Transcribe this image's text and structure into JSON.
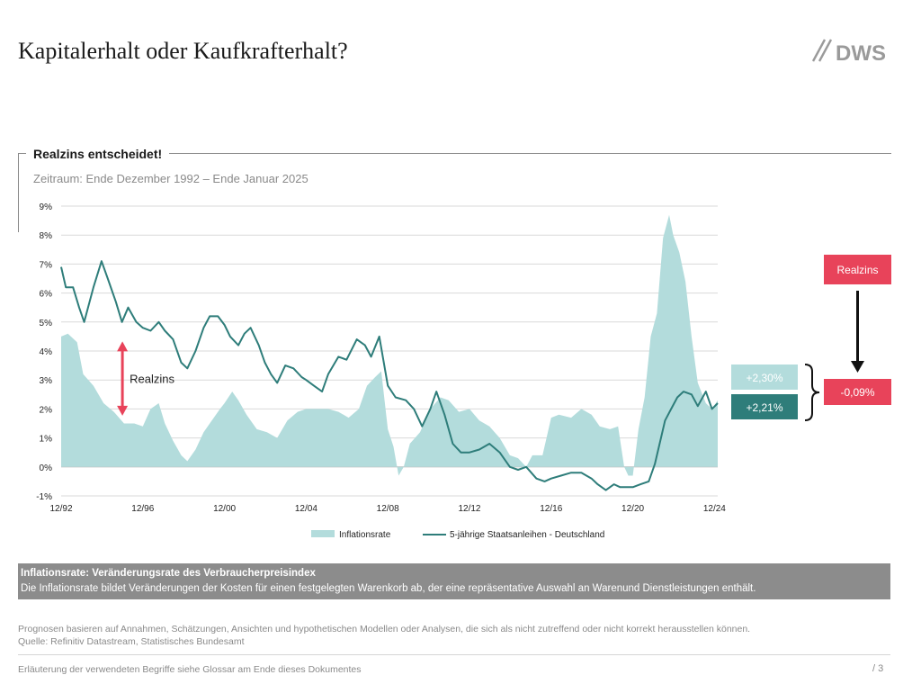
{
  "header": {
    "title": "Kapitalerhalt oder Kaufkrafterhalt?",
    "logo_text": "DWS"
  },
  "section": {
    "title": "Realzins entscheidet!",
    "period": "Zeitraum: Ende Dezember 1992 – Ende Januar 2025"
  },
  "colors": {
    "inflation_fill": "#b3dcdc",
    "bond_line": "#2e7d7a",
    "accent_red": "#e8435a",
    "box_light": "#b3dcdc",
    "box_dark": "#2e7d7a",
    "grid": "#d9d9d9"
  },
  "chart_data": {
    "type": "area",
    "x_unit": "year",
    "xlim": [
      1992.92,
      2025.08
    ],
    "ylim": [
      -1,
      9
    ],
    "y_ticks": [
      -1,
      0,
      1,
      2,
      3,
      4,
      5,
      6,
      7,
      8,
      9
    ],
    "y_tick_labels": [
      "-1%",
      "0%",
      "1%",
      "2%",
      "3%",
      "4%",
      "5%",
      "6%",
      "7%",
      "8%",
      "9%"
    ],
    "x_ticks": [
      1992.92,
      1996.92,
      2000.92,
      2004.92,
      2008.92,
      2012.92,
      2016.92,
      2020.92,
      2024.92
    ],
    "x_tick_labels": [
      "12/92",
      "12/96",
      "12/00",
      "12/04",
      "12/08",
      "12/12",
      "12/16",
      "12/20",
      "12/24"
    ],
    "legend": {
      "position": "bottom"
    },
    "series": [
      {
        "name": "Inflationsrate",
        "kind": "area",
        "points": [
          [
            1992.92,
            4.5
          ],
          [
            1993.25,
            4.6
          ],
          [
            1993.7,
            4.3
          ],
          [
            1994.0,
            3.2
          ],
          [
            1994.5,
            2.8
          ],
          [
            1995.0,
            2.2
          ],
          [
            1995.5,
            1.9
          ],
          [
            1996.0,
            1.5
          ],
          [
            1996.5,
            1.5
          ],
          [
            1996.92,
            1.4
          ],
          [
            1997.3,
            2.0
          ],
          [
            1997.7,
            2.2
          ],
          [
            1998.0,
            1.5
          ],
          [
            1998.4,
            0.9
          ],
          [
            1998.8,
            0.4
          ],
          [
            1999.1,
            0.2
          ],
          [
            1999.5,
            0.6
          ],
          [
            1999.9,
            1.2
          ],
          [
            2000.3,
            1.6
          ],
          [
            2000.7,
            2.0
          ],
          [
            2000.92,
            2.2
          ],
          [
            2001.3,
            2.6
          ],
          [
            2001.6,
            2.3
          ],
          [
            2002.0,
            1.8
          ],
          [
            2002.5,
            1.3
          ],
          [
            2003.0,
            1.2
          ],
          [
            2003.5,
            1.0
          ],
          [
            2004.0,
            1.6
          ],
          [
            2004.5,
            1.9
          ],
          [
            2004.92,
            2.0
          ],
          [
            2005.5,
            2.0
          ],
          [
            2006.0,
            2.0
          ],
          [
            2006.5,
            1.9
          ],
          [
            2007.0,
            1.7
          ],
          [
            2007.5,
            2.0
          ],
          [
            2007.9,
            2.8
          ],
          [
            2008.3,
            3.1
          ],
          [
            2008.6,
            3.3
          ],
          [
            2008.92,
            1.3
          ],
          [
            2009.2,
            0.7
          ],
          [
            2009.45,
            -0.3
          ],
          [
            2009.7,
            0.0
          ],
          [
            2010.0,
            0.8
          ],
          [
            2010.5,
            1.2
          ],
          [
            2011.0,
            2.0
          ],
          [
            2011.5,
            2.4
          ],
          [
            2011.9,
            2.3
          ],
          [
            2012.4,
            1.9
          ],
          [
            2012.92,
            2.0
          ],
          [
            2013.4,
            1.6
          ],
          [
            2013.9,
            1.4
          ],
          [
            2014.4,
            1.0
          ],
          [
            2014.9,
            0.4
          ],
          [
            2015.3,
            0.3
          ],
          [
            2015.7,
            0.0
          ],
          [
            2016.0,
            0.4
          ],
          [
            2016.5,
            0.4
          ],
          [
            2016.92,
            1.7
          ],
          [
            2017.3,
            1.8
          ],
          [
            2017.9,
            1.7
          ],
          [
            2018.4,
            2.0
          ],
          [
            2018.9,
            1.8
          ],
          [
            2019.3,
            1.4
          ],
          [
            2019.8,
            1.3
          ],
          [
            2020.2,
            1.4
          ],
          [
            2020.5,
            0.0
          ],
          [
            2020.7,
            -0.3
          ],
          [
            2020.92,
            -0.3
          ],
          [
            2021.2,
            1.3
          ],
          [
            2021.5,
            2.4
          ],
          [
            2021.8,
            4.5
          ],
          [
            2022.1,
            5.3
          ],
          [
            2022.4,
            7.9
          ],
          [
            2022.7,
            8.7
          ],
          [
            2022.9,
            8.0
          ],
          [
            2023.2,
            7.4
          ],
          [
            2023.5,
            6.4
          ],
          [
            2023.8,
            4.5
          ],
          [
            2024.1,
            2.9
          ],
          [
            2024.5,
            2.2
          ],
          [
            2024.8,
            2.0
          ],
          [
            2025.08,
            2.3
          ]
        ]
      },
      {
        "name": "5-jährige Staatsanleihen - Deutschland",
        "kind": "line",
        "points": [
          [
            1992.92,
            6.9
          ],
          [
            1993.15,
            6.2
          ],
          [
            1993.5,
            6.2
          ],
          [
            1993.8,
            5.5
          ],
          [
            1994.05,
            5.0
          ],
          [
            1994.5,
            6.2
          ],
          [
            1994.9,
            7.1
          ],
          [
            1995.2,
            6.5
          ],
          [
            1995.6,
            5.7
          ],
          [
            1995.9,
            5.0
          ],
          [
            1996.2,
            5.5
          ],
          [
            1996.6,
            5.0
          ],
          [
            1996.92,
            4.8
          ],
          [
            1997.3,
            4.7
          ],
          [
            1997.7,
            5.0
          ],
          [
            1998.0,
            4.7
          ],
          [
            1998.4,
            4.4
          ],
          [
            1998.8,
            3.6
          ],
          [
            1999.1,
            3.4
          ],
          [
            1999.5,
            4.0
          ],
          [
            1999.9,
            4.8
          ],
          [
            2000.2,
            5.2
          ],
          [
            2000.6,
            5.2
          ],
          [
            2000.92,
            4.9
          ],
          [
            2001.2,
            4.5
          ],
          [
            2001.6,
            4.2
          ],
          [
            2001.9,
            4.6
          ],
          [
            2002.2,
            4.8
          ],
          [
            2002.6,
            4.2
          ],
          [
            2002.9,
            3.6
          ],
          [
            2003.2,
            3.2
          ],
          [
            2003.5,
            2.9
          ],
          [
            2003.9,
            3.5
          ],
          [
            2004.3,
            3.4
          ],
          [
            2004.7,
            3.1
          ],
          [
            2004.92,
            3.0
          ],
          [
            2005.3,
            2.8
          ],
          [
            2005.7,
            2.6
          ],
          [
            2006.0,
            3.2
          ],
          [
            2006.5,
            3.8
          ],
          [
            2006.9,
            3.7
          ],
          [
            2007.4,
            4.4
          ],
          [
            2007.8,
            4.2
          ],
          [
            2008.1,
            3.8
          ],
          [
            2008.5,
            4.5
          ],
          [
            2008.92,
            2.8
          ],
          [
            2009.3,
            2.4
          ],
          [
            2009.8,
            2.3
          ],
          [
            2010.2,
            2.0
          ],
          [
            2010.6,
            1.4
          ],
          [
            2011.0,
            2.0
          ],
          [
            2011.3,
            2.6
          ],
          [
            2011.7,
            1.8
          ],
          [
            2012.1,
            0.8
          ],
          [
            2012.5,
            0.5
          ],
          [
            2012.92,
            0.5
          ],
          [
            2013.4,
            0.6
          ],
          [
            2013.9,
            0.8
          ],
          [
            2014.4,
            0.5
          ],
          [
            2014.9,
            0.0
          ],
          [
            2015.3,
            -0.1
          ],
          [
            2015.7,
            0.0
          ],
          [
            2016.2,
            -0.4
          ],
          [
            2016.6,
            -0.5
          ],
          [
            2016.92,
            -0.4
          ],
          [
            2017.4,
            -0.3
          ],
          [
            2017.9,
            -0.2
          ],
          [
            2018.4,
            -0.2
          ],
          [
            2018.9,
            -0.4
          ],
          [
            2019.2,
            -0.6
          ],
          [
            2019.6,
            -0.8
          ],
          [
            2020.0,
            -0.6
          ],
          [
            2020.3,
            -0.7
          ],
          [
            2020.7,
            -0.7
          ],
          [
            2020.92,
            -0.7
          ],
          [
            2021.3,
            -0.6
          ],
          [
            2021.7,
            -0.5
          ],
          [
            2022.0,
            0.1
          ],
          [
            2022.3,
            1.0
          ],
          [
            2022.5,
            1.6
          ],
          [
            2022.8,
            2.0
          ],
          [
            2023.1,
            2.4
          ],
          [
            2023.4,
            2.6
          ],
          [
            2023.8,
            2.5
          ],
          [
            2024.1,
            2.1
          ],
          [
            2024.5,
            2.6
          ],
          [
            2024.8,
            2.0
          ],
          [
            2025.08,
            2.2
          ]
        ]
      }
    ],
    "annotations": {
      "realzins_label": "Realzins",
      "realzins_arrow": {
        "x": 1995.92,
        "from": 1.8,
        "to": 4.3
      },
      "inflation_value": "+2,30%",
      "bond_value": "+2,21%",
      "realzins_box": "Realzins",
      "realzins_value": "-0,09%"
    }
  },
  "info": {
    "heading": "Inflationsrate: Veränderungsrate des Verbraucherpreisindex",
    "text": "Die Inflationsrate bildet Veränderungen der Kosten für einen festgelegten Warenkorb ab, der eine repräsentative Auswahl an Warenund Dienstleistungen enthält."
  },
  "disclaimer": {
    "line1": "Prognosen basieren auf Annahmen, Schätzungen, Ansichten und hypothetischen Modellen oder Analysen, die sich als nicht zutreffend oder nicht korrekt herausstellen können.",
    "line2": "Quelle: Refinitiv Datastream, Statistisches Bundesamt"
  },
  "footer": {
    "glossary": "Erläuterung der verwendeten Begriffe siehe Glossar am Ende dieses Dokumentes",
    "page": "/ 3"
  }
}
